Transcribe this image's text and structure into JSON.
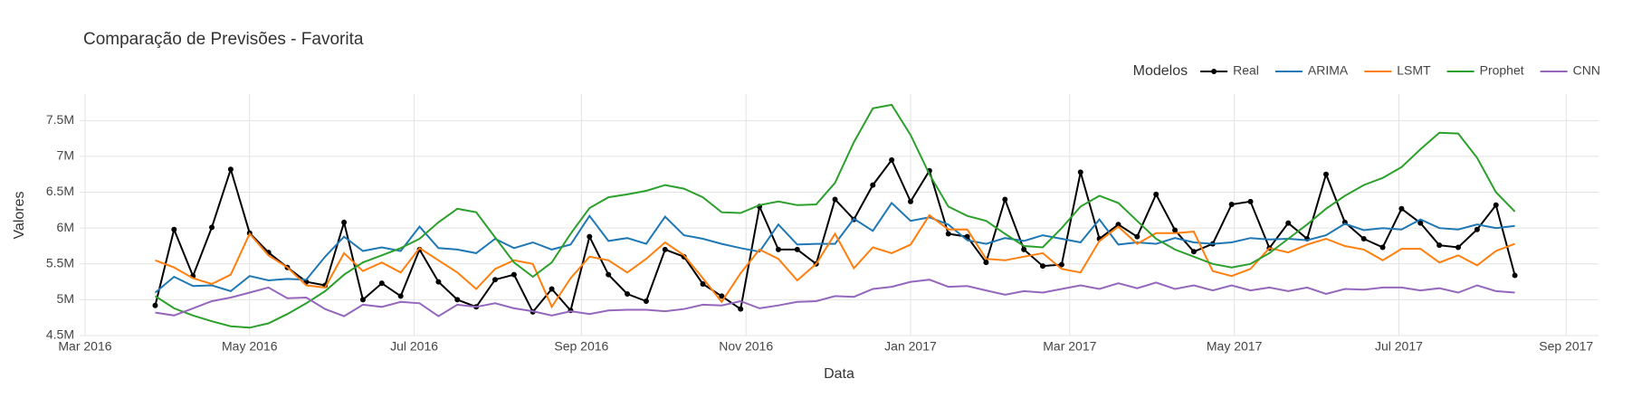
{
  "chart_data": {
    "type": "line",
    "title": "Comparação de Previsões - Favorita",
    "x_label": "Data",
    "y_label": "Valores",
    "legend_title": "Modelos",
    "legend": "top-right",
    "grid": true,
    "x": [
      "2016-03-27",
      "2016-04-03",
      "2016-04-10",
      "2016-04-17",
      "2016-04-24",
      "2016-05-01",
      "2016-05-08",
      "2016-05-15",
      "2016-05-22",
      "2016-05-29",
      "2016-06-05",
      "2016-06-12",
      "2016-06-19",
      "2016-06-26",
      "2016-07-03",
      "2016-07-10",
      "2016-07-17",
      "2016-07-24",
      "2016-07-31",
      "2016-08-07",
      "2016-08-14",
      "2016-08-21",
      "2016-08-28",
      "2016-09-04",
      "2016-09-11",
      "2016-09-18",
      "2016-09-25",
      "2016-10-02",
      "2016-10-09",
      "2016-10-16",
      "2016-10-23",
      "2016-10-30",
      "2016-11-06",
      "2016-11-13",
      "2016-11-20",
      "2016-11-27",
      "2016-12-04",
      "2016-12-11",
      "2016-12-18",
      "2016-12-25",
      "2017-01-01",
      "2017-01-08",
      "2017-01-15",
      "2017-01-22",
      "2017-01-29",
      "2017-02-05",
      "2017-02-12",
      "2017-02-19",
      "2017-02-26",
      "2017-03-05",
      "2017-03-12",
      "2017-03-19",
      "2017-03-26",
      "2017-04-02",
      "2017-04-09",
      "2017-04-16",
      "2017-04-23",
      "2017-04-30",
      "2017-05-07",
      "2017-05-14",
      "2017-05-21",
      "2017-05-28",
      "2017-06-04",
      "2017-06-11",
      "2017-06-18",
      "2017-06-25",
      "2017-07-02",
      "2017-07-09",
      "2017-07-16",
      "2017-07-23",
      "2017-07-30",
      "2017-08-06",
      "2017-08-13"
    ],
    "series": [
      {
        "name": "Real",
        "color": "#000000",
        "markers": true,
        "values": [
          4920000,
          5980000,
          5330000,
          6010000,
          6820000,
          5930000,
          5660000,
          5450000,
          5250000,
          5200000,
          6080000,
          5000000,
          5230000,
          5050000,
          5700000,
          5250000,
          5000000,
          4900000,
          5280000,
          5350000,
          4830000,
          5150000,
          4850000,
          5880000,
          5350000,
          5080000,
          4980000,
          5700000,
          5600000,
          5220000,
          5050000,
          4870000,
          6300000,
          5700000,
          5700000,
          5500000,
          6400000,
          6120000,
          6600000,
          6950000,
          6370000,
          6800000,
          5920000,
          5880000,
          5520000,
          6400000,
          5700000,
          5470000,
          5490000,
          6780000,
          5850000,
          6050000,
          5880000,
          6470000,
          5970000,
          5670000,
          5780000,
          6330000,
          6370000,
          5720000,
          6070000,
          5850000,
          6750000,
          6080000,
          5850000,
          5730000,
          6270000,
          6070000,
          5760000,
          5730000,
          5980000,
          6320000,
          5340000
        ]
      },
      {
        "name": "ARIMA",
        "color": "#1f77b4",
        "values": [
          5100000,
          5320000,
          5190000,
          5200000,
          5120000,
          5330000,
          5270000,
          5290000,
          5280000,
          5600000,
          5880000,
          5680000,
          5730000,
          5680000,
          6020000,
          5720000,
          5700000,
          5650000,
          5850000,
          5720000,
          5800000,
          5700000,
          5770000,
          6170000,
          5820000,
          5860000,
          5780000,
          6160000,
          5900000,
          5850000,
          5780000,
          5720000,
          5670000,
          6050000,
          5770000,
          5780000,
          5780000,
          6130000,
          5960000,
          6350000,
          6100000,
          6150000,
          6050000,
          5830000,
          5780000,
          5860000,
          5820000,
          5900000,
          5850000,
          5800000,
          6120000,
          5770000,
          5800000,
          5780000,
          5860000,
          5800000,
          5780000,
          5800000,
          5860000,
          5840000,
          5850000,
          5830000,
          5900000,
          6060000,
          5970000,
          6000000,
          5980000,
          6120000,
          6000000,
          5980000,
          6050000,
          6000000,
          6030000
        ]
      },
      {
        "name": "LSMT",
        "color": "#ff7f0e",
        "values": [
          5550000,
          5450000,
          5300000,
          5220000,
          5350000,
          5920000,
          5620000,
          5450000,
          5200000,
          5170000,
          5650000,
          5400000,
          5520000,
          5380000,
          5720000,
          5550000,
          5380000,
          5150000,
          5430000,
          5550000,
          5500000,
          4900000,
          5300000,
          5600000,
          5550000,
          5380000,
          5570000,
          5800000,
          5620000,
          5300000,
          4970000,
          5370000,
          5700000,
          5570000,
          5270000,
          5500000,
          5920000,
          5440000,
          5730000,
          5650000,
          5770000,
          6180000,
          5980000,
          5980000,
          5570000,
          5550000,
          5600000,
          5650000,
          5430000,
          5380000,
          5820000,
          6020000,
          5780000,
          5930000,
          5930000,
          5950000,
          5400000,
          5330000,
          5430000,
          5720000,
          5660000,
          5770000,
          5850000,
          5750000,
          5700000,
          5550000,
          5710000,
          5710000,
          5520000,
          5620000,
          5480000,
          5680000,
          5780000
        ]
      },
      {
        "name": "Prophet",
        "color": "#2ca02c",
        "values": [
          5050000,
          4880000,
          4780000,
          4700000,
          4630000,
          4610000,
          4670000,
          4800000,
          4950000,
          5120000,
          5350000,
          5520000,
          5620000,
          5720000,
          5850000,
          6080000,
          6270000,
          6220000,
          5870000,
          5520000,
          5320000,
          5520000,
          5920000,
          6280000,
          6430000,
          6470000,
          6520000,
          6600000,
          6550000,
          6430000,
          6220000,
          6210000,
          6320000,
          6370000,
          6320000,
          6330000,
          6630000,
          7200000,
          7670000,
          7720000,
          7300000,
          6750000,
          6300000,
          6170000,
          6100000,
          5920000,
          5750000,
          5730000,
          6000000,
          6300000,
          6450000,
          6350000,
          6100000,
          5850000,
          5700000,
          5600000,
          5500000,
          5450000,
          5500000,
          5650000,
          5850000,
          6050000,
          6270000,
          6450000,
          6600000,
          6700000,
          6850000,
          7100000,
          7330000,
          7320000,
          6980000,
          6500000,
          6230000
        ]
      },
      {
        "name": "CNN",
        "color": "#9467bd",
        "values": [
          4820000,
          4780000,
          4880000,
          4980000,
          5030000,
          5100000,
          5170000,
          5020000,
          5030000,
          4870000,
          4770000,
          4930000,
          4900000,
          4970000,
          4950000,
          4770000,
          4930000,
          4900000,
          4950000,
          4880000,
          4840000,
          4780000,
          4840000,
          4800000,
          4850000,
          4860000,
          4860000,
          4840000,
          4870000,
          4930000,
          4920000,
          4980000,
          4880000,
          4920000,
          4970000,
          4980000,
          5050000,
          5040000,
          5150000,
          5180000,
          5250000,
          5280000,
          5180000,
          5190000,
          5130000,
          5070000,
          5120000,
          5100000,
          5150000,
          5200000,
          5150000,
          5230000,
          5160000,
          5240000,
          5150000,
          5200000,
          5130000,
          5200000,
          5130000,
          5170000,
          5120000,
          5170000,
          5080000,
          5150000,
          5140000,
          5170000,
          5170000,
          5130000,
          5160000,
          5100000,
          5200000,
          5120000,
          5100000
        ]
      }
    ],
    "xlim": [
      "2016-02-28",
      "2017-09-13"
    ],
    "xticks": [
      {
        "value": "2016-03-01",
        "label": "Mar 2016"
      },
      {
        "value": "2016-05-01",
        "label": "May 2016"
      },
      {
        "value": "2016-07-01",
        "label": "Jul 2016"
      },
      {
        "value": "2016-09-01",
        "label": "Sep 2016"
      },
      {
        "value": "2016-11-01",
        "label": "Nov 2016"
      },
      {
        "value": "2017-01-01",
        "label": "Jan 2017"
      },
      {
        "value": "2017-03-01",
        "label": "Mar 2017"
      },
      {
        "value": "2017-05-01",
        "label": "May 2017"
      },
      {
        "value": "2017-07-01",
        "label": "Jul 2017"
      },
      {
        "value": "2017-09-01",
        "label": "Sep 2017"
      }
    ],
    "ylim": [
      4500000,
      7870000
    ],
    "yticks": [
      {
        "value": 4500000,
        "label": "4.5M"
      },
      {
        "value": 5000000,
        "label": "5M"
      },
      {
        "value": 5500000,
        "label": "5.5M"
      },
      {
        "value": 6000000,
        "label": "6M"
      },
      {
        "value": 6500000,
        "label": "6.5M"
      },
      {
        "value": 7000000,
        "label": "7M"
      },
      {
        "value": 7500000,
        "label": "7.5M"
      }
    ]
  }
}
